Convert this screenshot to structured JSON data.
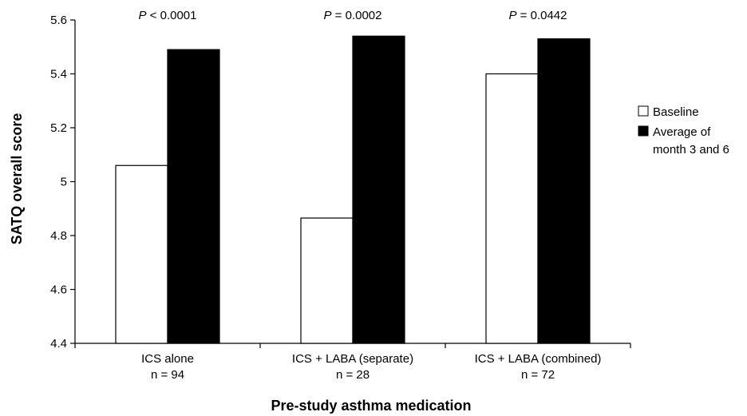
{
  "chart_data": {
    "type": "bar",
    "title": "",
    "xlabel": "Pre-study asthma medication",
    "ylabel": "SATQ overall score",
    "ylim": [
      4.4,
      5.6
    ],
    "yticks": [
      "4.4",
      "4.6",
      "4.8",
      "5",
      "5.2",
      "5.4",
      "5.6"
    ],
    "categories": [
      {
        "name": "ICS alone",
        "n": "n = 94"
      },
      {
        "name": "ICS + LABA (separate)",
        "n": "n = 28"
      },
      {
        "name": "ICS + LABA (combined)",
        "n": "n = 72"
      }
    ],
    "series": [
      {
        "name": "Baseline",
        "color": "#ffffff",
        "values": [
          5.06,
          4.865,
          5.4
        ]
      },
      {
        "name": "Average of month 3 and 6",
        "color": "#000000",
        "values": [
          5.49,
          5.54,
          5.53
        ]
      }
    ],
    "p_values": [
      {
        "symbol": "P",
        "text": " < 0.0001"
      },
      {
        "symbol": "P",
        "text": " = 0.0002"
      },
      {
        "symbol": "P",
        "text": " = 0.0442"
      }
    ],
    "legend": {
      "placement": "right",
      "items": [
        {
          "lines": [
            "Baseline"
          ]
        },
        {
          "lines": [
            "Average of",
            "month 3 and 6"
          ]
        }
      ]
    },
    "grid": false
  }
}
